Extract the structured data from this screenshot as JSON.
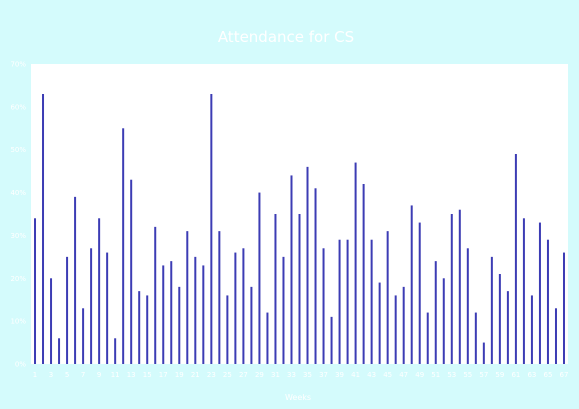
{
  "chart_data": {
    "type": "bar",
    "title": "Attendance for CS",
    "xlabel": "Weeks",
    "ylabel": "",
    "ylim": [
      0,
      70
    ],
    "yticks": [
      0,
      10,
      20,
      30,
      40,
      50,
      60,
      70
    ],
    "ytick_labels": [
      "0%",
      "10%",
      "20%",
      "30%",
      "40%",
      "50%",
      "60%",
      "70%"
    ],
    "xtick_labels": [
      "1",
      "3",
      "5",
      "7",
      "9",
      "11",
      "13",
      "15",
      "17",
      "19",
      "21",
      "23",
      "25",
      "27",
      "29",
      "31",
      "33",
      "35",
      "37",
      "39",
      "41",
      "43",
      "45",
      "47",
      "49",
      "51",
      "53",
      "55",
      "57",
      "59",
      "61",
      "63",
      "65",
      "67"
    ],
    "bar_color": "#3c3cb4",
    "plot_background": "#ffffff",
    "chart_background": "#d4fbfc",
    "values": [
      34,
      63,
      20,
      6,
      25,
      39,
      13,
      27,
      34,
      26,
      6,
      55,
      43,
      17,
      16,
      32,
      23,
      24,
      18,
      31,
      25,
      23,
      63,
      31,
      16,
      26,
      27,
      18,
      40,
      12,
      35,
      25,
      44,
      35,
      46,
      41,
      27,
      11,
      29,
      29,
      47,
      42,
      29,
      19,
      31,
      16,
      18,
      37,
      33,
      12,
      24,
      20,
      35,
      36,
      27,
      12,
      5,
      25,
      21,
      17,
      49,
      34,
      16,
      33,
      29,
      13,
      26
    ]
  }
}
